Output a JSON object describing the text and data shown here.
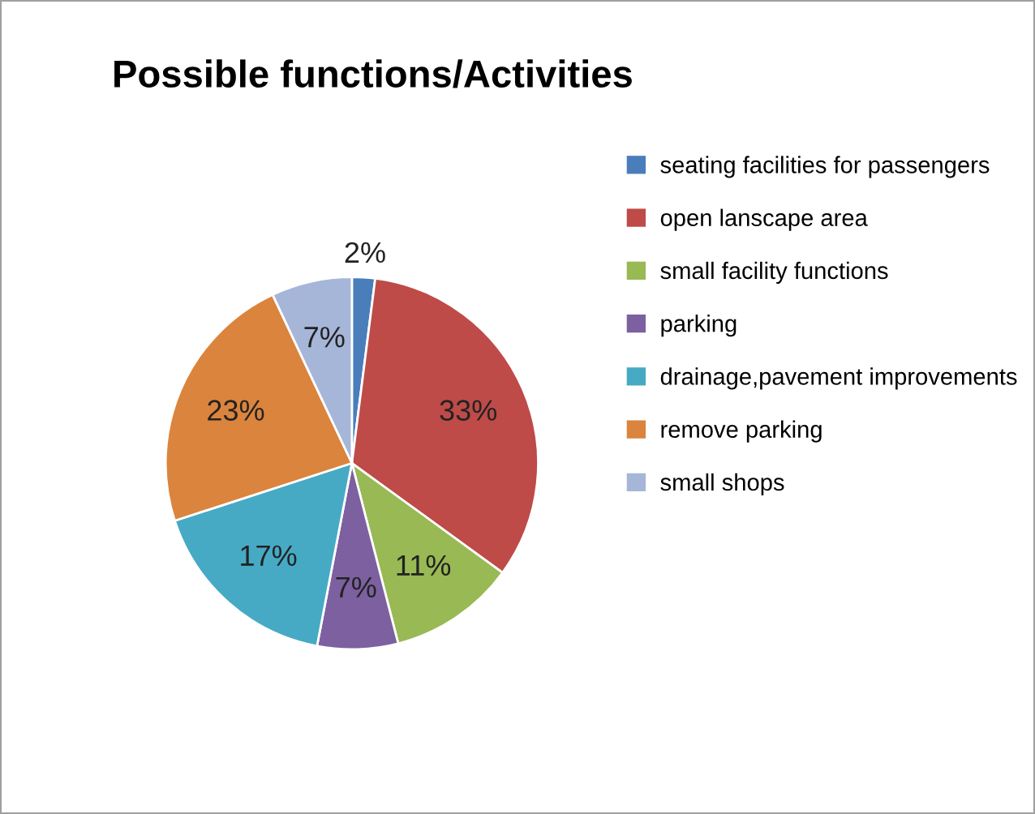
{
  "chart_data": {
    "type": "pie",
    "title": "Possible functions/Activities",
    "categories": [
      "seating facilities for passengers",
      "open lanscape area",
      "small facility functions",
      "parking",
      "drainage,pavement improvements",
      "remove parking",
      "small shops"
    ],
    "values": [
      2,
      33,
      11,
      7,
      17,
      23,
      7
    ],
    "value_labels": [
      "2%",
      "33%",
      "11%",
      "7%",
      "17%",
      "23%",
      "7%"
    ],
    "colors": [
      "#4a7ebb",
      "#be4b48",
      "#98b954",
      "#7d60a0",
      "#46aac5",
      "#db843d",
      "#a5b6d8"
    ],
    "legend": "right"
  }
}
